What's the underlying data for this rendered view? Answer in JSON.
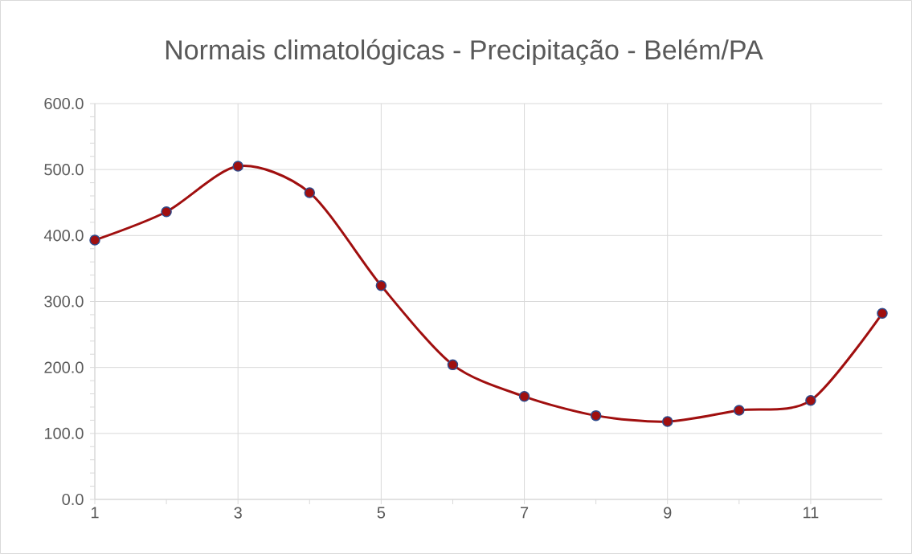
{
  "chart_data": {
    "type": "line",
    "title": "Normais climatológicas - Precipitação - Belém/PA",
    "x": [
      1,
      2,
      3,
      4,
      5,
      6,
      7,
      8,
      9,
      10,
      11,
      12
    ],
    "series": [
      {
        "color": "#a00f0f",
        "values": [
          393,
          436,
          505,
          465,
          324,
          204,
          156,
          127,
          118,
          135,
          150,
          282
        ]
      }
    ],
    "xlim": [
      1,
      12
    ],
    "xticks": [
      1,
      3,
      5,
      7,
      9,
      11
    ],
    "ylim": [
      0,
      600
    ],
    "yticks": [
      {
        "value": 0,
        "label": "0.0"
      },
      {
        "value": 100,
        "label": "100.0"
      },
      {
        "value": 200,
        "label": "200.0"
      },
      {
        "value": 300,
        "label": "300.0"
      },
      {
        "value": 400,
        "label": "400.0"
      },
      {
        "value": 500,
        "label": "500.0"
      },
      {
        "value": 600,
        "label": "600.0"
      }
    ],
    "grid": true,
    "marker": "circle",
    "line_style": "solid"
  }
}
